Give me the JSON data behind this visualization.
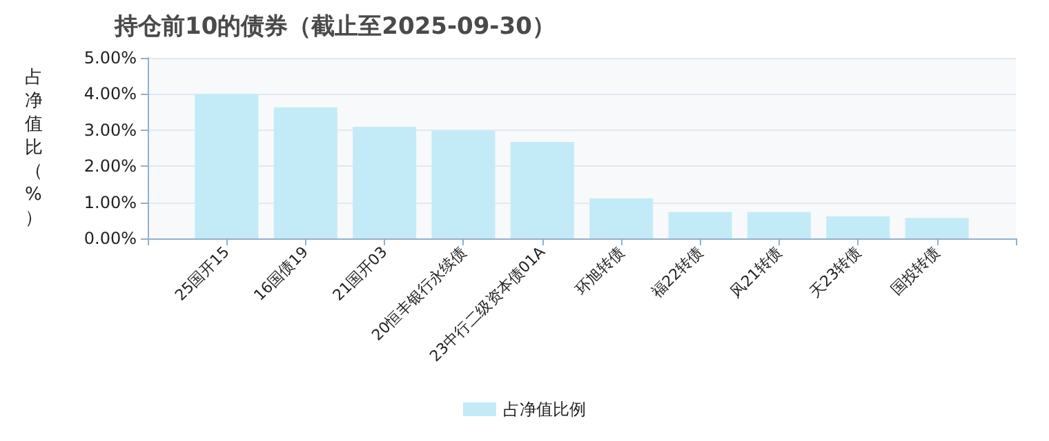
{
  "chart_data": {
    "type": "bar",
    "title": "持仓前10的债券（截止至2025-09-30）",
    "ylabel": "占净值比（%）",
    "categories": [
      "25国开15",
      "16国债19",
      "21国开03",
      "20恒丰银行永续债",
      "23中行二级资本债01A",
      "环旭转债",
      "福22转债",
      "风21转债",
      "天23转债",
      "国投转债"
    ],
    "series": [
      {
        "name": "占净值比例",
        "color": "#c2ebf7",
        "values": [
          4.0,
          3.63,
          3.09,
          2.98,
          2.67,
          1.11,
          0.73,
          0.73,
          0.61,
          0.57
        ]
      }
    ],
    "ylim": [
      0,
      5
    ],
    "yticks": [
      {
        "value": 0,
        "label": "0.00%"
      },
      {
        "value": 1,
        "label": "1.00%"
      },
      {
        "value": 2,
        "label": "2.00%"
      },
      {
        "value": 3,
        "label": "3.00%"
      },
      {
        "value": 4,
        "label": "4.00%"
      },
      {
        "value": 5,
        "label": "5.00%"
      }
    ],
    "grid": "y",
    "legend": "bottom"
  }
}
